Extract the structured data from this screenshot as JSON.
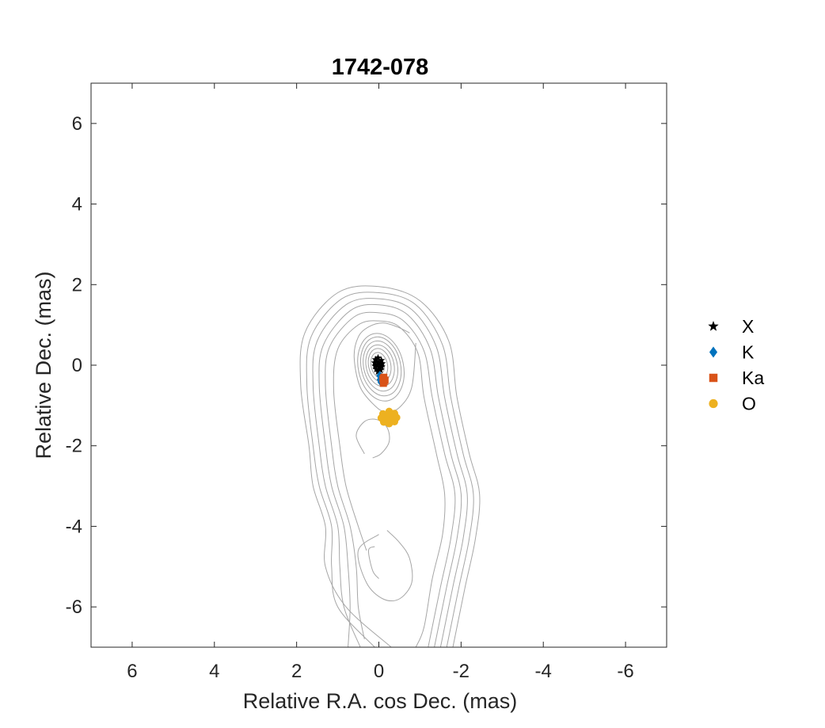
{
  "chart_data": {
    "type": "scatter",
    "title": "1742-078",
    "xlabel": "Relative R.A. cos Dec. (mas)",
    "ylabel": "Relative Dec. (mas)",
    "xlim": [
      7,
      -7
    ],
    "ylim": [
      -7,
      7
    ],
    "x_reversed": true,
    "xticks": [
      6,
      4,
      2,
      0,
      -2,
      -4,
      -6
    ],
    "yticks": [
      -6,
      -4,
      -2,
      0,
      2,
      4,
      6
    ],
    "xtick_labels": [
      "6",
      "4",
      "2",
      "0",
      "-2",
      "-4",
      "-6"
    ],
    "ytick_labels": [
      "-6",
      "-4",
      "-2",
      "0",
      "2",
      "4",
      "6"
    ],
    "grid": false,
    "legend_position": "right",
    "contour_color": "#a6a6a6",
    "series": [
      {
        "name": "X",
        "marker": "star",
        "color": "#000000",
        "points": [
          [
            0.02,
            0.18
          ],
          [
            0.08,
            0.14
          ],
          [
            0.1,
            0.06
          ],
          [
            0.09,
            -0.02
          ],
          [
            0.06,
            -0.1
          ],
          [
            0.02,
            -0.16
          ],
          [
            -0.04,
            -0.12
          ],
          [
            -0.07,
            -0.04
          ],
          [
            -0.08,
            0.04
          ],
          [
            -0.06,
            0.12
          ],
          [
            0.0,
            0.05
          ],
          [
            0.04,
            0.0
          ],
          [
            -0.02,
            -0.06
          ],
          [
            0.05,
            0.1
          ]
        ]
      },
      {
        "name": "K",
        "marker": "diamond",
        "color": "#0072bd",
        "points": [
          [
            -0.02,
            -0.26
          ],
          [
            -0.06,
            -0.31
          ],
          [
            -0.03,
            -0.36
          ],
          [
            -0.08,
            -0.38
          ],
          [
            -0.05,
            -0.42
          ]
        ]
      },
      {
        "name": "Ka",
        "marker": "square",
        "color": "#d95319",
        "points": [
          [
            -0.1,
            -0.34
          ],
          [
            -0.13,
            -0.4
          ],
          [
            -0.11,
            -0.45
          ],
          [
            -0.15,
            -0.37
          ],
          [
            -0.12,
            -0.3
          ]
        ]
      },
      {
        "name": "O",
        "marker": "circle",
        "color": "#edb120",
        "points": [
          [
            -0.25,
            -1.15
          ],
          [
            -0.38,
            -1.2
          ],
          [
            -0.43,
            -1.3
          ],
          [
            -0.38,
            -1.4
          ],
          [
            -0.25,
            -1.45
          ],
          [
            -0.12,
            -1.41
          ],
          [
            -0.06,
            -1.31
          ],
          [
            -0.1,
            -1.21
          ],
          [
            -0.18,
            -1.3
          ],
          [
            -0.3,
            -1.25
          ],
          [
            -0.33,
            -1.35
          ],
          [
            -0.2,
            -1.37
          ]
        ]
      }
    ],
    "contours": [
      [
        [
          -0.3,
          -7
        ],
        [
          0.8,
          -6
        ],
        [
          1.3,
          -5
        ],
        [
          1.3,
          -4
        ],
        [
          1.6,
          -3
        ],
        [
          1.7,
          -2
        ],
        [
          1.9,
          -0.5
        ],
        [
          1.8,
          0.8
        ],
        [
          1.0,
          1.8
        ],
        [
          0,
          1.95
        ],
        [
          -1,
          1.6
        ],
        [
          -1.7,
          0.6
        ],
        [
          -1.9,
          -0.8
        ],
        [
          -2.2,
          -2.2
        ],
        [
          -2.45,
          -3.2
        ],
        [
          -2.35,
          -4.3
        ],
        [
          -2.1,
          -5.5
        ],
        [
          -1.8,
          -7
        ]
      ],
      [
        [
          0.1,
          -7
        ],
        [
          1.0,
          -6
        ],
        [
          1.15,
          -5
        ],
        [
          1.15,
          -4
        ],
        [
          1.45,
          -3
        ],
        [
          1.6,
          -2
        ],
        [
          1.75,
          -0.5
        ],
        [
          1.65,
          0.7
        ],
        [
          0.9,
          1.65
        ],
        [
          0,
          1.8
        ],
        [
          -0.9,
          1.5
        ],
        [
          -1.55,
          0.5
        ],
        [
          -1.75,
          -0.8
        ],
        [
          -2.05,
          -2.2
        ],
        [
          -2.3,
          -3.2
        ],
        [
          -2.2,
          -4.3
        ],
        [
          -1.95,
          -5.5
        ],
        [
          -1.65,
          -7
        ]
      ],
      [
        [
          0.45,
          -7
        ],
        [
          0.85,
          -6
        ],
        [
          0.95,
          -5
        ],
        [
          1.0,
          -4
        ],
        [
          1.3,
          -3
        ],
        [
          1.45,
          -2
        ],
        [
          1.6,
          -0.5
        ],
        [
          1.5,
          0.6
        ],
        [
          0.8,
          1.5
        ],
        [
          0,
          1.65
        ],
        [
          -0.8,
          1.38
        ],
        [
          -1.4,
          0.45
        ],
        [
          -1.6,
          -0.8
        ],
        [
          -1.9,
          -2.2
        ],
        [
          -2.15,
          -3.2
        ],
        [
          -2.05,
          -4.3
        ],
        [
          -1.8,
          -5.5
        ],
        [
          -1.5,
          -7
        ]
      ],
      [
        [
          0.75,
          -7
        ],
        [
          0.7,
          -6
        ],
        [
          0.75,
          -5
        ],
        [
          0.85,
          -4
        ],
        [
          1.15,
          -3
        ],
        [
          1.3,
          -2
        ],
        [
          1.45,
          -0.5
        ],
        [
          1.35,
          0.5
        ],
        [
          0.7,
          1.35
        ],
        [
          0,
          1.5
        ],
        [
          -0.7,
          1.25
        ],
        [
          -1.25,
          0.4
        ],
        [
          -1.45,
          -0.8
        ],
        [
          -1.75,
          -2.2
        ],
        [
          -2.0,
          -3.2
        ],
        [
          -1.9,
          -4.3
        ],
        [
          -1.65,
          -5.5
        ],
        [
          -1.35,
          -7
        ]
      ],
      [
        [
          0.35,
          -6.8
        ],
        [
          0.5,
          -6
        ],
        [
          0.55,
          -5
        ],
        [
          0.7,
          -4
        ],
        [
          1.0,
          -3
        ],
        [
          1.15,
          -2
        ],
        [
          1.3,
          -0.5
        ],
        [
          1.2,
          0.45
        ],
        [
          0.6,
          1.2
        ],
        [
          0,
          1.3
        ],
        [
          -0.6,
          1.1
        ],
        [
          -1.1,
          0.35
        ],
        [
          -1.3,
          -0.8
        ],
        [
          -1.6,
          -2.2
        ],
        [
          -1.85,
          -3.2
        ],
        [
          -1.75,
          -4.3
        ],
        [
          -1.5,
          -5.5
        ],
        [
          -1.2,
          -7
        ]
      ],
      [
        [
          0.3,
          -4.6
        ],
        [
          0.5,
          -4
        ],
        [
          0.8,
          -3
        ],
        [
          0.95,
          -2
        ],
        [
          1.1,
          -0.6
        ],
        [
          1.0,
          0.4
        ],
        [
          0.5,
          1.0
        ],
        [
          0,
          1.1
        ],
        [
          -0.5,
          0.95
        ],
        [
          -0.95,
          0.3
        ],
        [
          -1.1,
          -0.8
        ],
        [
          -1.4,
          -2.2
        ],
        [
          -1.6,
          -3.2
        ],
        [
          -1.55,
          -4.2
        ],
        [
          -1.3,
          -5.3
        ],
        [
          -1.1,
          -6.5
        ],
        [
          -0.9,
          -7
        ]
      ],
      [
        [
          0.0,
          -5.3
        ],
        [
          0.15,
          -5.1
        ],
        [
          0.25,
          -4.6
        ],
        [
          0.1,
          -4.5
        ]
      ],
      [
        [
          0.0,
          -4.2
        ],
        [
          0.5,
          -4.6
        ],
        [
          0.3,
          -5.4
        ],
        [
          -0.1,
          -5.8
        ],
        [
          -0.5,
          -5.8
        ],
        [
          -0.8,
          -5.4
        ],
        [
          -0.75,
          -4.8
        ],
        [
          -0.5,
          -4.4
        ],
        [
          -0.2,
          -4.1
        ]
      ],
      [
        [
          0.35,
          -2.2
        ],
        [
          0.55,
          -1.75
        ],
        [
          0.35,
          -1.4
        ],
        [
          0.05,
          -1.35
        ],
        [
          -0.2,
          -1.55
        ],
        [
          -0.25,
          -1.9
        ],
        [
          -0.05,
          -2.2
        ],
        [
          0.15,
          -2.3
        ]
      ],
      [
        [
          -0.9,
          0.55
        ],
        [
          -0.8,
          -0.55
        ],
        [
          -0.5,
          -1.05
        ],
        [
          -0.2,
          -1.15
        ],
        [
          0.05,
          -1.05
        ],
        [
          0.45,
          -0.55
        ],
        [
          0.6,
          0.2
        ],
        [
          0.5,
          0.7
        ],
        [
          0.25,
          0.95
        ],
        [
          -0.1,
          1.05
        ],
        [
          -0.45,
          0.95
        ],
        [
          -0.75,
          0.8
        ]
      ]
    ],
    "contour_ellipses": [
      {
        "cx": -0.05,
        "cy": -0.05,
        "rx": 0.55,
        "ry": 0.85,
        "rot": -12
      },
      {
        "cx": -0.05,
        "cy": -0.03,
        "rx": 0.48,
        "ry": 0.74,
        "rot": -12
      },
      {
        "cx": -0.04,
        "cy": -0.02,
        "rx": 0.41,
        "ry": 0.63,
        "rot": -12
      },
      {
        "cx": -0.03,
        "cy": -0.01,
        "rx": 0.34,
        "ry": 0.52,
        "rot": -12
      },
      {
        "cx": -0.02,
        "cy": 0.0,
        "rx": 0.27,
        "ry": 0.42,
        "rot": -12
      },
      {
        "cx": -0.01,
        "cy": 0.0,
        "rx": 0.2,
        "ry": 0.32,
        "rot": -12
      },
      {
        "cx": 0.0,
        "cy": 0.0,
        "rx": 0.13,
        "ry": 0.22,
        "rot": -12
      }
    ]
  }
}
